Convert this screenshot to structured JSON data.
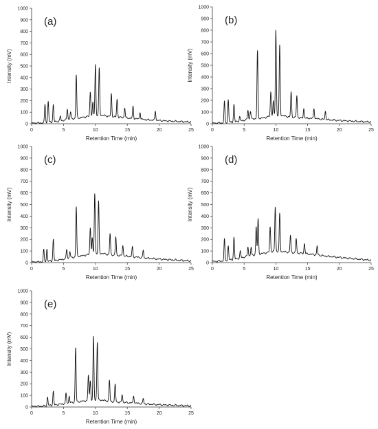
{
  "chart_data": [
    {
      "type": "line",
      "panel_label": "(a)",
      "xlabel": "Retention Time (min)",
      "ylabel": "Intensity (mV)",
      "xlim": [
        0,
        25
      ],
      "ylim": [
        0,
        1000
      ],
      "x_ticks": [
        0,
        5,
        10,
        15,
        20,
        25
      ],
      "y_ticks": [
        0,
        100,
        200,
        300,
        400,
        500,
        600,
        700,
        800,
        900,
        1000
      ],
      "grid": false,
      "baseline": [
        [
          0,
          5
        ],
        [
          2,
          8
        ],
        [
          4,
          20
        ],
        [
          6,
          40
        ],
        [
          8,
          55
        ],
        [
          9.5,
          70
        ],
        [
          11,
          75
        ],
        [
          12,
          65
        ],
        [
          14,
          55
        ],
        [
          16,
          45
        ],
        [
          18,
          35
        ],
        [
          20,
          28
        ],
        [
          22,
          22
        ],
        [
          25,
          15
        ]
      ],
      "peaks": [
        {
          "rt": 2.1,
          "height": 160
        },
        {
          "rt": 2.6,
          "height": 185
        },
        {
          "rt": 3.4,
          "height": 150
        },
        {
          "rt": 4.5,
          "height": 40
        },
        {
          "rt": 5.6,
          "height": 90
        },
        {
          "rt": 6.1,
          "height": 60
        },
        {
          "rt": 7.0,
          "height": 375
        },
        {
          "rt": 9.2,
          "height": 210
        },
        {
          "rt": 9.6,
          "height": 110
        },
        {
          "rt": 10.0,
          "height": 445
        },
        {
          "rt": 10.6,
          "height": 405
        },
        {
          "rt": 12.5,
          "height": 195
        },
        {
          "rt": 13.4,
          "height": 155
        },
        {
          "rt": 14.6,
          "height": 85
        },
        {
          "rt": 15.9,
          "height": 105
        },
        {
          "rt": 17.0,
          "height": 60
        },
        {
          "rt": 19.4,
          "height": 80
        }
      ]
    },
    {
      "type": "line",
      "panel_label": "(b)",
      "xlabel": "Retention Time (min)",
      "ylabel": "Intensity (mV)",
      "xlim": [
        0,
        25
      ],
      "ylim": [
        0,
        1000
      ],
      "x_ticks": [
        0,
        5,
        10,
        15,
        20,
        25
      ],
      "y_ticks": [
        0,
        100,
        200,
        300,
        400,
        500,
        600,
        700,
        800,
        900,
        1000
      ],
      "grid": false,
      "baseline": [
        [
          0,
          5
        ],
        [
          2,
          8
        ],
        [
          4,
          20
        ],
        [
          6,
          40
        ],
        [
          8,
          50
        ],
        [
          9.5,
          70
        ],
        [
          11,
          70
        ],
        [
          12,
          60
        ],
        [
          14,
          50
        ],
        [
          16,
          45
        ],
        [
          18,
          35
        ],
        [
          20,
          28
        ],
        [
          22,
          22
        ],
        [
          25,
          15
        ]
      ],
      "peaks": [
        {
          "rt": 1.9,
          "height": 180
        },
        {
          "rt": 2.5,
          "height": 195
        },
        {
          "rt": 3.4,
          "height": 150
        },
        {
          "rt": 4.3,
          "height": 35
        },
        {
          "rt": 5.6,
          "height": 80
        },
        {
          "rt": 6.0,
          "height": 70
        },
        {
          "rt": 7.1,
          "height": 580
        },
        {
          "rt": 9.2,
          "height": 210
        },
        {
          "rt": 9.6,
          "height": 120
        },
        {
          "rt": 10.0,
          "height": 735
        },
        {
          "rt": 10.6,
          "height": 600
        },
        {
          "rt": 12.4,
          "height": 215
        },
        {
          "rt": 13.3,
          "height": 185
        },
        {
          "rt": 14.4,
          "height": 80
        },
        {
          "rt": 16.0,
          "height": 85
        },
        {
          "rt": 17.8,
          "height": 70
        }
      ]
    },
    {
      "type": "line",
      "panel_label": "(c)",
      "xlabel": "Retention Time (min)",
      "ylabel": "Intensity (mV)",
      "xlim": [
        0,
        25
      ],
      "ylim": [
        0,
        1000
      ],
      "x_ticks": [
        0,
        5,
        10,
        15,
        20,
        25
      ],
      "y_ticks": [
        0,
        100,
        200,
        300,
        400,
        500,
        600,
        700,
        800,
        900,
        1000
      ],
      "grid": false,
      "baseline": [
        [
          0,
          5
        ],
        [
          2,
          8
        ],
        [
          4,
          20
        ],
        [
          6,
          40
        ],
        [
          8,
          60
        ],
        [
          9.5,
          75
        ],
        [
          11,
          80
        ],
        [
          12,
          70
        ],
        [
          14,
          60
        ],
        [
          16,
          50
        ],
        [
          18,
          38
        ],
        [
          20,
          30
        ],
        [
          22,
          24
        ],
        [
          25,
          15
        ]
      ],
      "peaks": [
        {
          "rt": 1.9,
          "height": 100
        },
        {
          "rt": 2.4,
          "height": 105
        },
        {
          "rt": 3.4,
          "height": 185
        },
        {
          "rt": 5.5,
          "height": 80
        },
        {
          "rt": 6.0,
          "height": 60
        },
        {
          "rt": 7.0,
          "height": 430
        },
        {
          "rt": 9.2,
          "height": 230
        },
        {
          "rt": 9.5,
          "height": 140
        },
        {
          "rt": 9.9,
          "height": 520
        },
        {
          "rt": 10.5,
          "height": 450
        },
        {
          "rt": 12.3,
          "height": 180
        },
        {
          "rt": 13.2,
          "height": 160
        },
        {
          "rt": 14.3,
          "height": 90
        },
        {
          "rt": 15.8,
          "height": 85
        },
        {
          "rt": 17.5,
          "height": 65
        }
      ]
    },
    {
      "type": "line",
      "panel_label": "(d)",
      "xlabel": "Retention Time (min)",
      "ylabel": "Intensity (mV)",
      "xlim": [
        0,
        25
      ],
      "ylim": [
        0,
        1000
      ],
      "x_ticks": [
        0,
        5,
        10,
        15,
        20,
        25
      ],
      "y_ticks": [
        0,
        100,
        200,
        300,
        400,
        500,
        600,
        700,
        800,
        900,
        1000
      ],
      "grid": false,
      "baseline": [
        [
          0,
          10
        ],
        [
          2,
          15
        ],
        [
          4,
          35
        ],
        [
          6,
          60
        ],
        [
          8,
          80
        ],
        [
          9.5,
          95
        ],
        [
          11,
          95
        ],
        [
          12,
          90
        ],
        [
          14,
          80
        ],
        [
          16,
          70
        ],
        [
          18,
          55
        ],
        [
          20,
          45
        ],
        [
          22,
          35
        ],
        [
          25,
          20
        ]
      ],
      "peaks": [
        {
          "rt": 1.9,
          "height": 185
        },
        {
          "rt": 2.5,
          "height": 125
        },
        {
          "rt": 3.4,
          "height": 190
        },
        {
          "rt": 4.4,
          "height": 60
        },
        {
          "rt": 5.6,
          "height": 80
        },
        {
          "rt": 6.1,
          "height": 70
        },
        {
          "rt": 6.9,
          "height": 240
        },
        {
          "rt": 7.2,
          "height": 300
        },
        {
          "rt": 9.1,
          "height": 215
        },
        {
          "rt": 9.9,
          "height": 385
        },
        {
          "rt": 10.6,
          "height": 325
        },
        {
          "rt": 12.3,
          "height": 145
        },
        {
          "rt": 13.2,
          "height": 125
        },
        {
          "rt": 14.5,
          "height": 90
        },
        {
          "rt": 16.5,
          "height": 75
        }
      ]
    },
    {
      "type": "line",
      "panel_label": "(e)",
      "xlabel": "Retention Time (min)",
      "ylabel": "Intensity (mV)",
      "xlim": [
        0,
        25
      ],
      "ylim": [
        0,
        1000
      ],
      "x_ticks": [
        0,
        5,
        10,
        15,
        20,
        25
      ],
      "y_ticks": [
        0,
        100,
        200,
        300,
        400,
        500,
        600,
        700,
        800,
        900,
        1000
      ],
      "grid": false,
      "baseline": [
        [
          0,
          5
        ],
        [
          2,
          8
        ],
        [
          4,
          20
        ],
        [
          6,
          35
        ],
        [
          8,
          50
        ],
        [
          9.5,
          60
        ],
        [
          11,
          60
        ],
        [
          12,
          50
        ],
        [
          14,
          40
        ],
        [
          16,
          35
        ],
        [
          18,
          25
        ],
        [
          20,
          20
        ],
        [
          22,
          15
        ],
        [
          25,
          10
        ]
      ],
      "peaks": [
        {
          "rt": 2.5,
          "height": 75
        },
        {
          "rt": 3.4,
          "height": 120
        },
        {
          "rt": 5.4,
          "height": 85
        },
        {
          "rt": 5.9,
          "height": 60
        },
        {
          "rt": 6.9,
          "height": 470
        },
        {
          "rt": 8.9,
          "height": 220
        },
        {
          "rt": 9.2,
          "height": 170
        },
        {
          "rt": 9.7,
          "height": 545
        },
        {
          "rt": 10.3,
          "height": 500
        },
        {
          "rt": 12.2,
          "height": 180
        },
        {
          "rt": 13.1,
          "height": 150
        },
        {
          "rt": 14.2,
          "height": 70
        },
        {
          "rt": 16.0,
          "height": 60
        },
        {
          "rt": 17.5,
          "height": 45
        }
      ]
    }
  ]
}
